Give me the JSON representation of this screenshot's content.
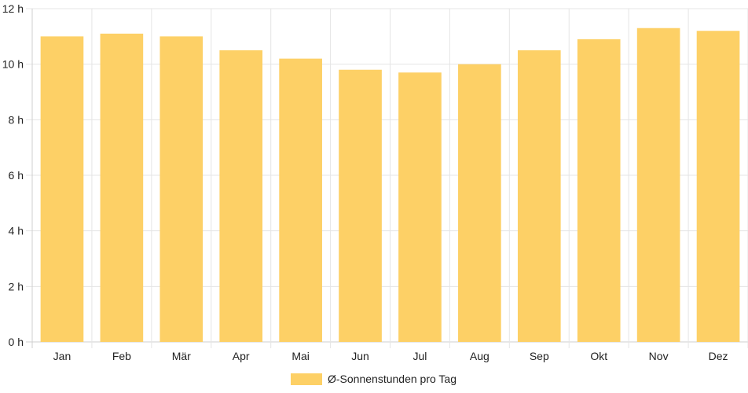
{
  "chart_data": {
    "type": "bar",
    "categories": [
      "Jan",
      "Feb",
      "Mär",
      "Apr",
      "Mai",
      "Jun",
      "Jul",
      "Aug",
      "Sep",
      "Okt",
      "Nov",
      "Dez"
    ],
    "series": [
      {
        "name": "Ø-Sonnenstunden pro Tag",
        "values": [
          11.0,
          11.1,
          11.0,
          10.5,
          10.2,
          9.8,
          9.7,
          10.0,
          10.5,
          10.9,
          11.3,
          11.2
        ]
      }
    ],
    "y_ticks": [
      "0 h",
      "2 h",
      "4 h",
      "6 h",
      "8 h",
      "10 h",
      "12 h"
    ],
    "ylim": [
      0,
      12
    ],
    "grid": true,
    "legend_position": "bottom-center",
    "colors": {
      "bar": "#fdd066",
      "grid": "#e5e5e5",
      "axis": "#cfcfcf",
      "text": "#222222"
    }
  }
}
